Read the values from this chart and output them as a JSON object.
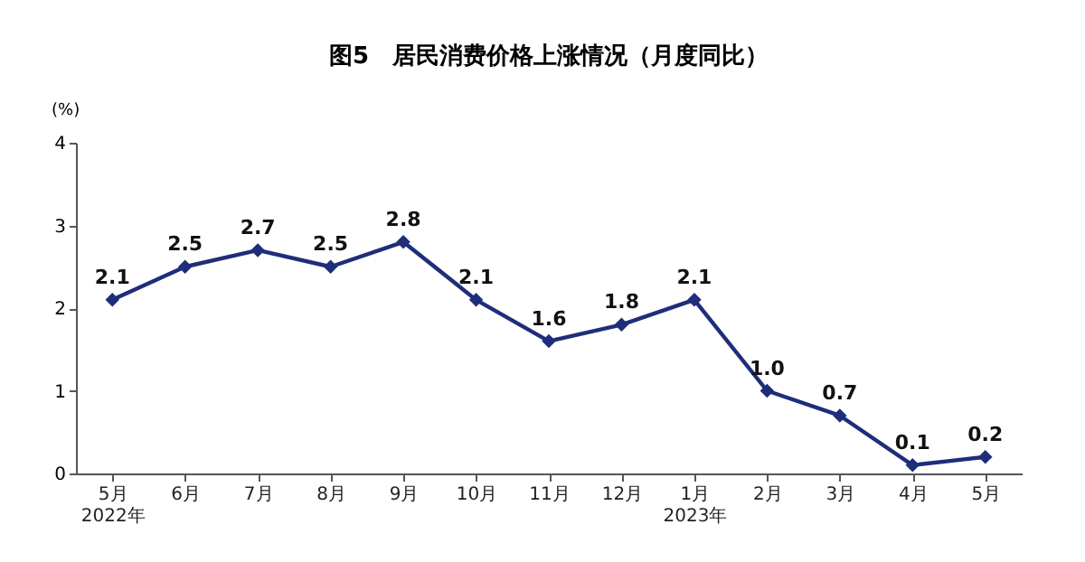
{
  "chart_data": {
    "type": "line",
    "title": "图5　居民消费价格上涨情况（月度同比）",
    "ylabel": "(%)",
    "categories": [
      "5月\n2022年",
      "6月",
      "7月",
      "8月",
      "9月",
      "10月",
      "11月",
      "12月",
      "1月\n2023年",
      "2月",
      "3月",
      "4月",
      "5月"
    ],
    "values": [
      2.1,
      2.5,
      2.7,
      2.5,
      2.8,
      2.1,
      1.6,
      1.8,
      2.1,
      1.0,
      0.7,
      0.1,
      0.2
    ],
    "value_labels": [
      "2.1",
      "2.5",
      "2.7",
      "2.5",
      "2.8",
      "2.1",
      "1.6",
      "1.8",
      "2.1",
      "1.0",
      "0.7",
      "0.1",
      "0.2"
    ],
    "color": "#1f2d7b",
    "ylim": [
      0,
      4
    ],
    "yticks": [
      0,
      1,
      2,
      3,
      4
    ],
    "grid": false,
    "marker": "diamond",
    "line_style": "solid"
  }
}
